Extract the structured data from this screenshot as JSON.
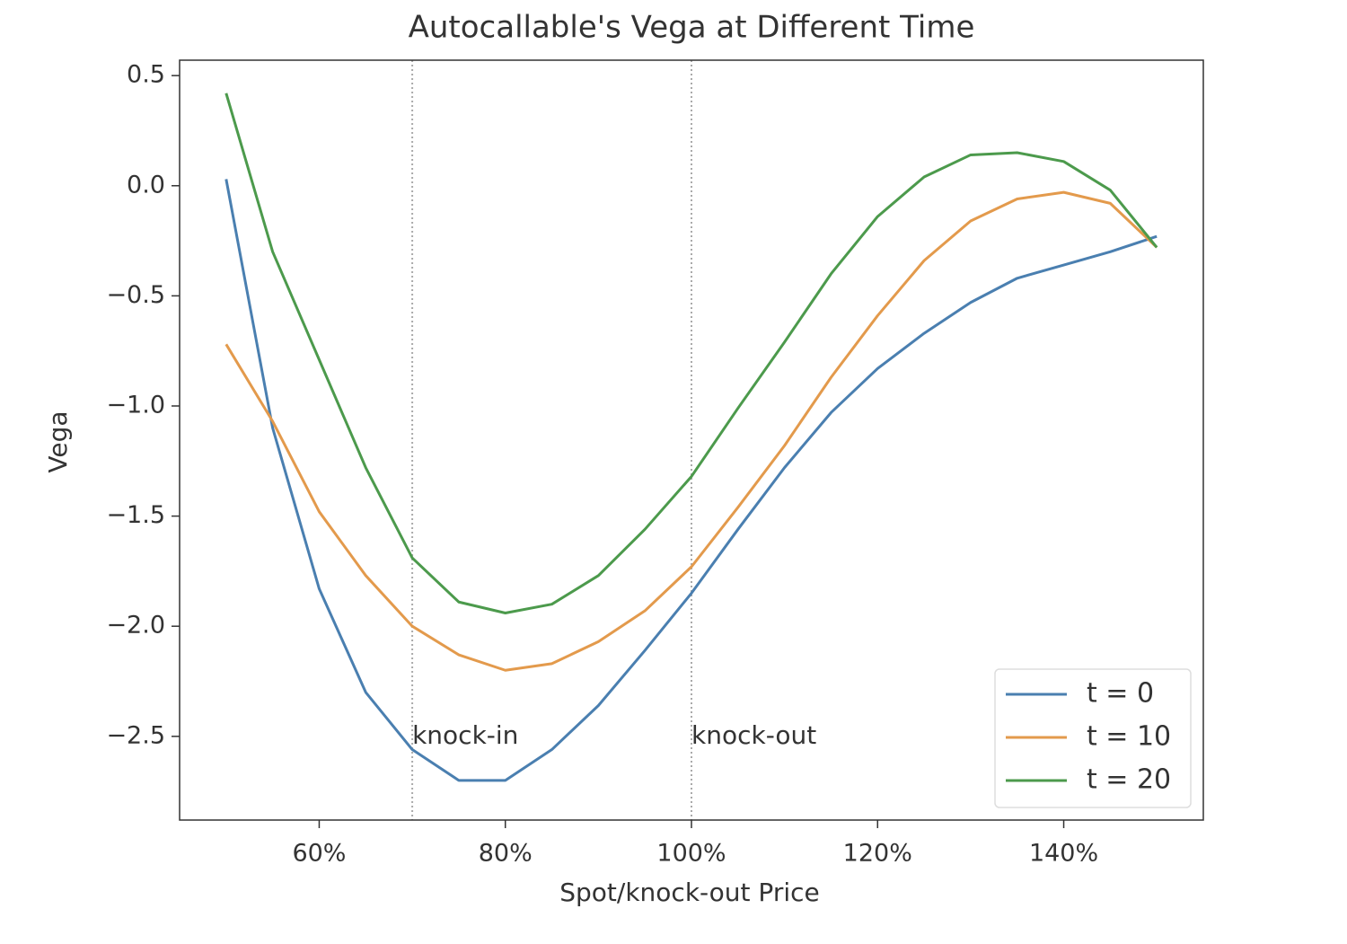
{
  "chart_data": {
    "type": "line",
    "title": "Autocallable's Vega at Different Time",
    "x_label": "Spot/knock-out Price",
    "y_label": "Vega",
    "x": [
      50,
      55,
      60,
      65,
      70,
      75,
      80,
      85,
      90,
      95,
      100,
      105,
      110,
      115,
      120,
      125,
      130,
      135,
      140,
      145,
      150
    ],
    "series": [
      {
        "name": "t = 0",
        "color": "#4a7fb0",
        "values": [
          0.03,
          -1.1,
          -1.83,
          -2.3,
          -2.56,
          -2.7,
          -2.7,
          -2.56,
          -2.36,
          -2.11,
          -1.85,
          -1.56,
          -1.28,
          -1.03,
          -0.83,
          -0.67,
          -0.53,
          -0.42,
          -0.36,
          -0.3,
          -0.23
        ]
      },
      {
        "name": "t = 10",
        "color": "#e39a4c",
        "values": [
          -0.72,
          -1.07,
          -1.48,
          -1.77,
          -2.0,
          -2.13,
          -2.2,
          -2.17,
          -2.07,
          -1.93,
          -1.73,
          -1.46,
          -1.18,
          -0.87,
          -0.59,
          -0.34,
          -0.16,
          -0.06,
          -0.03,
          -0.08,
          -0.28
        ]
      },
      {
        "name": "t = 20",
        "color": "#4c9a4c",
        "values": [
          0.42,
          -0.3,
          -0.79,
          -1.28,
          -1.69,
          -1.89,
          -1.94,
          -1.9,
          -1.77,
          -1.56,
          -1.32,
          -1.01,
          -0.71,
          -0.4,
          -0.14,
          0.04,
          0.14,
          0.15,
          0.11,
          -0.02,
          -0.28
        ]
      }
    ],
    "annotations": [
      {
        "text": "knock-in",
        "x": 70,
        "y": -2.5
      },
      {
        "text": "knock-out",
        "x": 100,
        "y": -2.5
      }
    ],
    "xlim": [
      45,
      155
    ],
    "ylim": [
      -2.88,
      0.57
    ],
    "xticks": [
      {
        "value": 60,
        "label": "60%"
      },
      {
        "value": 80,
        "label": "80%"
      },
      {
        "value": 100,
        "label": "100%"
      },
      {
        "value": 120,
        "label": "120%"
      },
      {
        "value": 140,
        "label": "140%"
      }
    ],
    "yticks": [
      0.5,
      {
        "value": 0,
        "label": "0.0"
      },
      {
        "value": -0.5,
        "label": "−0.5"
      },
      {
        "value": -1,
        "label": "−1.0"
      },
      {
        "value": -1.5,
        "label": "−1.5"
      },
      {
        "value": -2,
        "label": "−2.0"
      },
      {
        "value": -2.5,
        "label": "−2.5"
      }
    ],
    "legend": "lower right",
    "grid": false
  }
}
